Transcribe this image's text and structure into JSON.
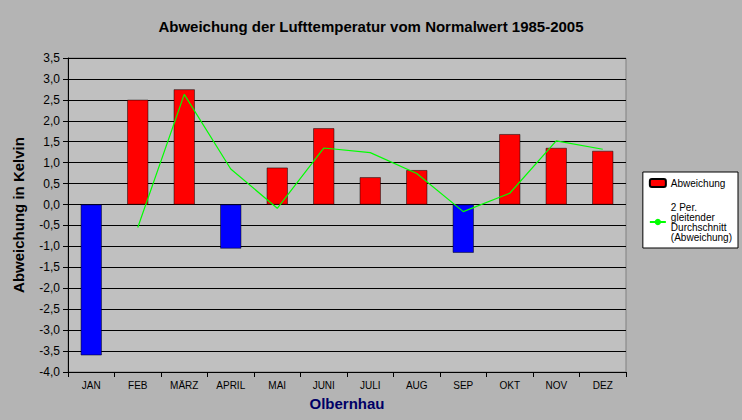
{
  "chart_data": {
    "type": "bar",
    "title": "Abweichung der Lufttemperatur vom Normalwert 1985-2005",
    "x_label": "Olbernhau",
    "y_label": "Abweichung in Kelvin",
    "categories": [
      "JAN",
      "FEB",
      "MÄRZ",
      "APRIL",
      "MAI",
      "JUNI",
      "JULI",
      "AUG",
      "SEP",
      "OKT",
      "NOV",
      "DEZ"
    ],
    "series": [
      {
        "name": "Abweichung",
        "type": "bar",
        "color": "#ff0000",
        "colors": [
          "#0000ff",
          "#ff0000",
          "#ff0000",
          "#0000ff",
          "#ff0000",
          "#ff0000",
          "#ff0000",
          "#ff0000",
          "#0000ff",
          "#ff0000",
          "#ff0000",
          "#ff0000"
        ],
        "values": [
          -3.6,
          2.5,
          2.75,
          -1.05,
          0.88,
          1.82,
          0.65,
          0.82,
          -1.15,
          1.68,
          1.35,
          1.28
        ]
      },
      {
        "name": "2 Per. gleitender Durchschnitt (Abweichung)",
        "type": "line",
        "color": "#00ff00",
        "line_style": "solid",
        "values": [
          null,
          -0.55,
          2.63,
          0.85,
          -0.09,
          1.35,
          1.24,
          0.74,
          -0.17,
          0.27,
          1.52,
          1.32
        ]
      }
    ],
    "ylim": [
      -4.0,
      3.5
    ],
    "yticks": [
      {
        "value": -4.0,
        "label": "-4,0"
      },
      {
        "value": -3.5,
        "label": "-3,5"
      },
      {
        "value": -3.0,
        "label": "-3,0"
      },
      {
        "value": -2.5,
        "label": "-2,5"
      },
      {
        "value": -2.0,
        "label": "-2,0"
      },
      {
        "value": -1.5,
        "label": "-1,5"
      },
      {
        "value": -1.0,
        "label": "-1,0"
      },
      {
        "value": -0.5,
        "label": "-0,5"
      },
      {
        "value": 0.0,
        "label": "0,0"
      },
      {
        "value": 0.5,
        "label": "0,5"
      },
      {
        "value": 1.0,
        "label": "1,0"
      },
      {
        "value": 1.5,
        "label": "1,5"
      },
      {
        "value": 2.0,
        "label": "2,0"
      },
      {
        "value": 2.5,
        "label": "2,5"
      },
      {
        "value": 3.0,
        "label": "3,0"
      },
      {
        "value": 3.5,
        "label": "3,5"
      }
    ],
    "grid": true,
    "legend": "right"
  }
}
